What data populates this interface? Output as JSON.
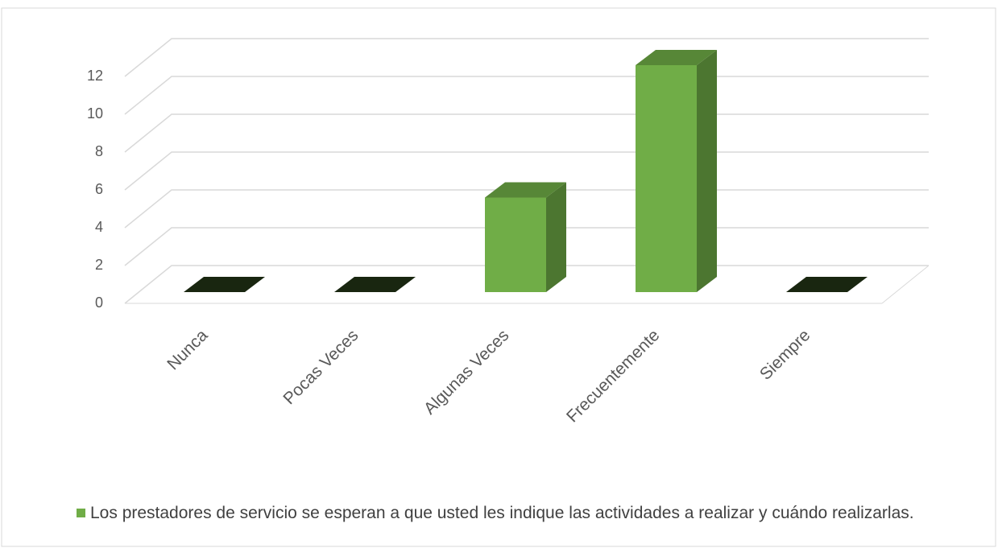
{
  "chart_data": {
    "type": "bar",
    "categories": [
      "Nunca",
      "Pocas Veces",
      "Algunas Veces",
      "Frecuentemente",
      "Siempre"
    ],
    "series": [
      {
        "name": "Los prestadores de servicio se esperan a que usted les indique las actividades a realizar y cuándo realizarlas.",
        "color": "#70ad47",
        "values": [
          0,
          0,
          5,
          12,
          0
        ]
      }
    ],
    "ylim": [
      0,
      12
    ],
    "yticks": [
      0,
      2,
      4,
      6,
      8,
      10,
      12
    ],
    "grid": true,
    "legend": "bottom"
  }
}
